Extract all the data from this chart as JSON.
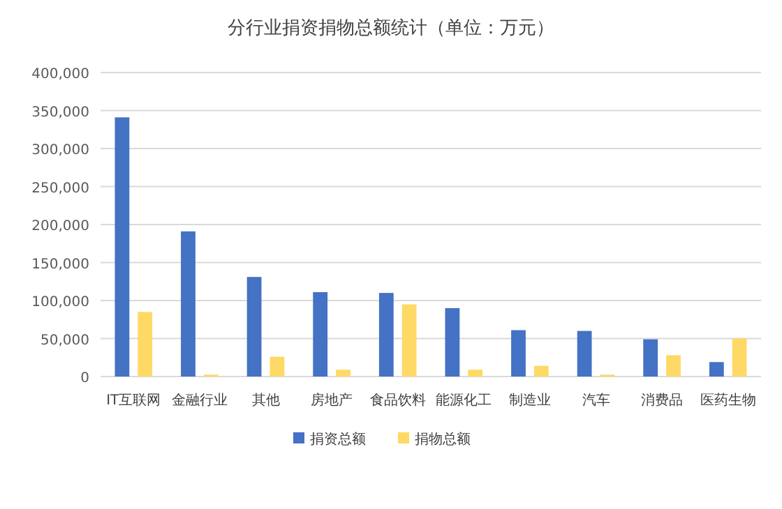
{
  "chart_data": {
    "type": "bar",
    "title": "分行业捐资捐物总额统计（单位：万元）",
    "categories": [
      "IT互联网",
      "金融行业",
      "其他",
      "房地产",
      "食品饮料",
      "能源化工",
      "制造业",
      "汽车",
      "消费品",
      "医药生物"
    ],
    "series": [
      {
        "name": "捐资总额",
        "color": "#4472c4",
        "values": [
          341000,
          191000,
          131000,
          111000,
          110000,
          90000,
          61000,
          60000,
          49000,
          19000
        ]
      },
      {
        "name": "捐物总额",
        "color": "#ffd966",
        "values": [
          85000,
          2500,
          26000,
          9000,
          95000,
          9000,
          14000,
          2500,
          28000,
          50000
        ]
      }
    ],
    "ylim": [
      0,
      400000
    ],
    "yticks": [
      {
        "value": 0,
        "label": "0"
      },
      {
        "value": 50000,
        "label": "50,000"
      },
      {
        "value": 100000,
        "label": "100,000"
      },
      {
        "value": 150000,
        "label": "150,000"
      },
      {
        "value": 200000,
        "label": "200,000"
      },
      {
        "value": 250000,
        "label": "250,000"
      },
      {
        "value": 300000,
        "label": "300,000"
      },
      {
        "value": 350000,
        "label": "350,000"
      },
      {
        "value": 400000,
        "label": "400,000"
      }
    ],
    "grid": "y",
    "legend": "bottom"
  }
}
